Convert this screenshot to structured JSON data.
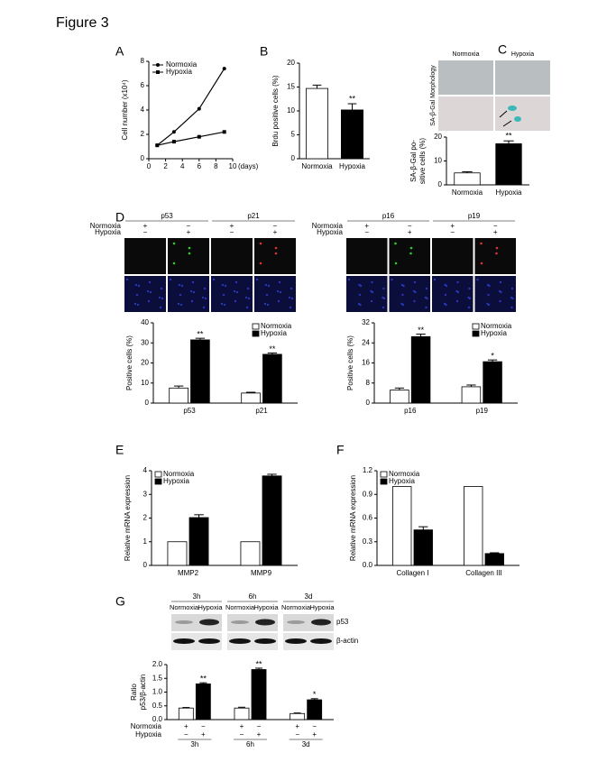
{
  "figure_title": "Figure 3",
  "chart_data": [
    {
      "type": "line",
      "panel": "A",
      "y_label": [
        "Cell number (x10⁴)"
      ],
      "x_label": "(days)",
      "x": [
        1,
        3,
        6,
        9
      ],
      "series": [
        {
          "name": "Normoxia",
          "color": "#000000",
          "marker": "circle",
          "values": [
            1.1,
            2.2,
            4.1,
            7.4
          ]
        },
        {
          "name": "Hypoxia",
          "color": "#000000",
          "marker": "square",
          "values": [
            1.1,
            1.4,
            1.8,
            2.2
          ]
        }
      ],
      "xlim": [
        0,
        10
      ],
      "xticks": [
        0,
        2,
        4,
        6,
        8,
        10
      ],
      "ylim": [
        0,
        8
      ],
      "yticks": [
        0,
        2,
        4,
        6,
        8
      ],
      "legend": "upper left"
    },
    {
      "type": "bar",
      "panel": "B",
      "y_label": [
        "Brdu positive cells (%)"
      ],
      "categories": [
        "Normoxia",
        "Hypoxia"
      ],
      "values": [
        14.7,
        10.2
      ],
      "errors": [
        0.7,
        1.3
      ],
      "colors": [
        "#ffffff",
        "#000000"
      ],
      "significance": [
        null,
        "**"
      ],
      "ylim": [
        0,
        20
      ],
      "yticks": [
        0,
        5,
        10,
        15,
        20
      ]
    },
    {
      "type": "bar",
      "panel": "C",
      "image_labels": [
        "Normoxia",
        "Hypoxia"
      ],
      "image_side_label": "SA-β-Gal Morphology",
      "y_label": [
        "SA-β-Gal po-",
        "sitive cells (%)"
      ],
      "categories": [
        "Normoxia",
        "Hypoxia"
      ],
      "values": [
        5,
        17.2
      ],
      "errors": [
        0.5,
        1.2
      ],
      "colors": [
        "#ffffff",
        "#000000"
      ],
      "significance": [
        null,
        "**"
      ],
      "ylim": [
        0,
        20
      ],
      "yticks": [
        0,
        10,
        20
      ]
    },
    {
      "type": "bar",
      "panel": "D",
      "image_labels": [
        "p53",
        "p21"
      ],
      "conditions": [
        {
          "label": "Normoxia",
          "signs": [
            "+",
            "−",
            "+",
            "−"
          ]
        },
        {
          "label": "Hypoxia",
          "signs": [
            "−",
            "+",
            "−",
            "+"
          ]
        }
      ],
      "y_label": [
        "Positive cells (%)"
      ],
      "categories": [
        "p53",
        "p21"
      ],
      "series": [
        {
          "name": "Normoxia",
          "color": "#ffffff",
          "values": [
            7.5,
            5.0
          ],
          "errors": [
            1.0,
            0.4
          ]
        },
        {
          "name": "Hypoxia",
          "color": "#000000",
          "values": [
            31.5,
            24.3
          ],
          "errors": [
            0.8,
            0.7
          ],
          "significance": [
            "**",
            "**"
          ]
        }
      ],
      "ylim": [
        0,
        40
      ],
      "yticks": [
        0,
        10,
        20,
        30,
        40
      ],
      "legend": "upper right"
    },
    {
      "type": "bar",
      "image_labels": [
        "p16",
        "p19"
      ],
      "conditions": [
        {
          "label": "Normoxia",
          "signs": [
            "+",
            "−",
            "+",
            "−"
          ]
        },
        {
          "label": "Hypoxia",
          "signs": [
            "−",
            "+",
            "−",
            "+"
          ]
        }
      ],
      "y_label": [
        "Positive cells (%)"
      ],
      "categories": [
        "p16",
        "p19"
      ],
      "series": [
        {
          "name": "Normoxia",
          "color": "#ffffff",
          "values": [
            5.2,
            6.5
          ],
          "errors": [
            0.8,
            0.7
          ]
        },
        {
          "name": "Hypoxia",
          "color": "#000000",
          "values": [
            26.5,
            16.5
          ],
          "errors": [
            1.0,
            0.7
          ],
          "significance": [
            "**",
            "*"
          ]
        }
      ],
      "ylim": [
        0,
        32
      ],
      "yticks": [
        0,
        8,
        16,
        24,
        32
      ],
      "legend": "upper right"
    },
    {
      "type": "bar",
      "panel": "E",
      "y_label": [
        "Relative mRNA expression"
      ],
      "categories": [
        "MMP2",
        "MMP9"
      ],
      "series": [
        {
          "name": "Normoxia",
          "color": "#ffffff",
          "values": [
            1,
            1
          ]
        },
        {
          "name": "Hypoxia",
          "color": "#000000",
          "values": [
            2.02,
            3.78
          ],
          "errors": [
            0.12,
            0.07
          ]
        }
      ],
      "ylim": [
        0,
        4
      ],
      "yticks": [
        0,
        1,
        2,
        3,
        4
      ],
      "legend": "upper left"
    },
    {
      "type": "bar",
      "panel": "F",
      "y_label": [
        "Relative mRNA expression"
      ],
      "categories": [
        "Collagen I",
        "Collagen III"
      ],
      "series": [
        {
          "name": "Normoxia",
          "color": "#ffffff",
          "values": [
            1,
            1
          ]
        },
        {
          "name": "Hypoxia",
          "color": "#000000",
          "values": [
            0.45,
            0.15
          ],
          "errors": [
            0.04,
            0.01
          ]
        }
      ],
      "ylim": [
        0,
        1.2
      ],
      "yticks": [
        {
          "value": 0,
          "label": "0.0"
        },
        0.3,
        0.6,
        0.9,
        1.2
      ],
      "legend": "upper left"
    },
    {
      "type": "bar",
      "panel": "G",
      "blot_headers": [
        "3h",
        "6h",
        "3d"
      ],
      "lane_labels": [
        "Normoxia",
        "Hypoxia"
      ],
      "band_labels": [
        "p53",
        "β-actin"
      ],
      "conditions": [
        {
          "label": "Normoxia",
          "signs": [
            "+",
            "−",
            "+",
            "−",
            "+",
            "−"
          ]
        },
        {
          "label": "Hypoxia",
          "signs": [
            "−",
            "+",
            "−",
            "+",
            "−",
            "+"
          ]
        }
      ],
      "y_label": [
        "Ratio",
        "p53/β-actin"
      ],
      "categories": [
        "3h",
        "6h",
        "3d"
      ],
      "series": [
        {
          "name": "Normoxia",
          "color": "#ffffff",
          "values": [
            0.42,
            0.42,
            0.22
          ],
          "errors": [
            0.02,
            0.03,
            0.02
          ]
        },
        {
          "name": "Hypoxia",
          "color": "#000000",
          "values": [
            1.3,
            1.82,
            0.72
          ],
          "errors": [
            0.04,
            0.05,
            0.04
          ],
          "significance": [
            "**",
            "**",
            "*"
          ]
        }
      ],
      "ylim": [
        0,
        2
      ],
      "yticks": [
        {
          "value": 0,
          "label": "0.0"
        },
        0.5,
        {
          "value": 1,
          "label": "1.0"
        },
        1.5,
        {
          "value": 2,
          "label": "2.0"
        }
      ]
    }
  ]
}
